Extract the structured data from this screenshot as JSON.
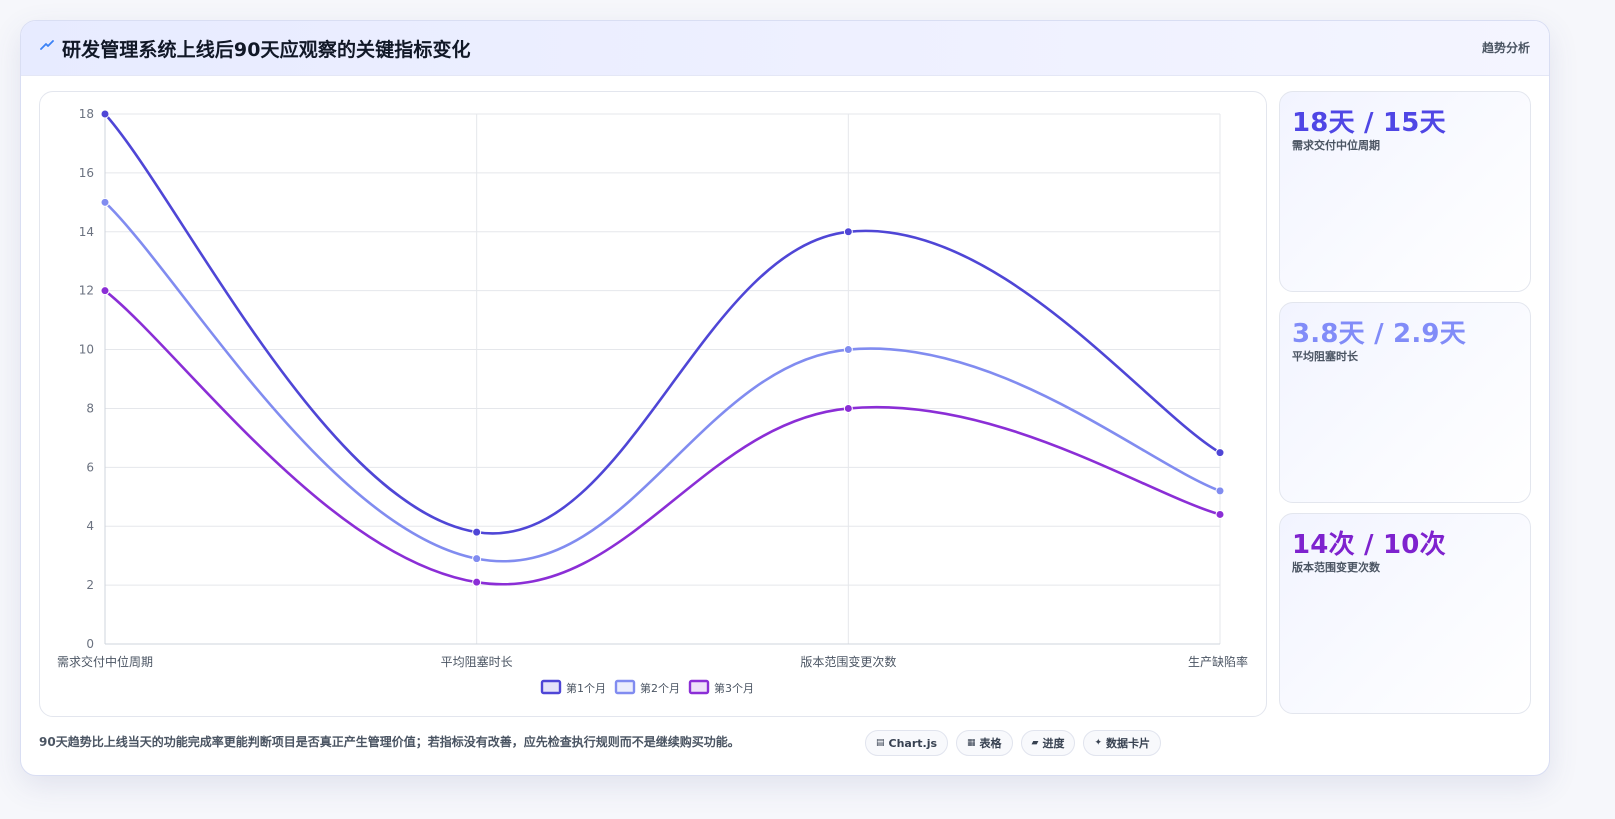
{
  "header": {
    "title": "研发管理系统上线后90天应观察的关键指标变化",
    "tag": "趋势分析",
    "icon": "trend-line-icon"
  },
  "stats": [
    {
      "value": "18天 / 15天",
      "label": "需求交付中位周期",
      "color": "#4f46e5"
    },
    {
      "value": "3.8天 / 2.9天",
      "label": "平均阻塞时长",
      "color": "#818cf8"
    },
    {
      "value": "14次 / 10次",
      "label": "版本范围变更次数",
      "color": "#7e22ce"
    }
  ],
  "footer": {
    "note": "90天趋势比上线当天的功能完成率更能判断项目是否真正产生管理价值；若指标没有改善，应先检查执行规则而不是继续购买功能。"
  },
  "chips": [
    {
      "label": "Chart.js",
      "icon": "chart-icon"
    },
    {
      "label": "表格",
      "icon": "table-icon"
    },
    {
      "label": "进度",
      "icon": "progress-icon"
    },
    {
      "label": "数据卡片",
      "icon": "sparkle-icon"
    }
  ],
  "chart_data": {
    "type": "line",
    "categories": [
      "需求交付中位周期",
      "平均阻塞时长",
      "版本范围变更次数",
      "生产缺陷率"
    ],
    "series": [
      {
        "name": "第1个月",
        "values": [
          18,
          3.8,
          14,
          6.5
        ],
        "color": "#4f46d6"
      },
      {
        "name": "第2个月",
        "values": [
          15,
          2.9,
          10,
          5.2
        ],
        "color": "#818cf0"
      },
      {
        "name": "第3个月",
        "values": [
          12,
          2.1,
          8,
          4.4
        ],
        "color": "#8b2ed6"
      }
    ],
    "ylim": [
      0,
      18
    ],
    "yticks": [
      0,
      2,
      4,
      6,
      8,
      10,
      12,
      14,
      16,
      18
    ],
    "grid": true,
    "legend": "bottom",
    "curve": "smooth"
  }
}
